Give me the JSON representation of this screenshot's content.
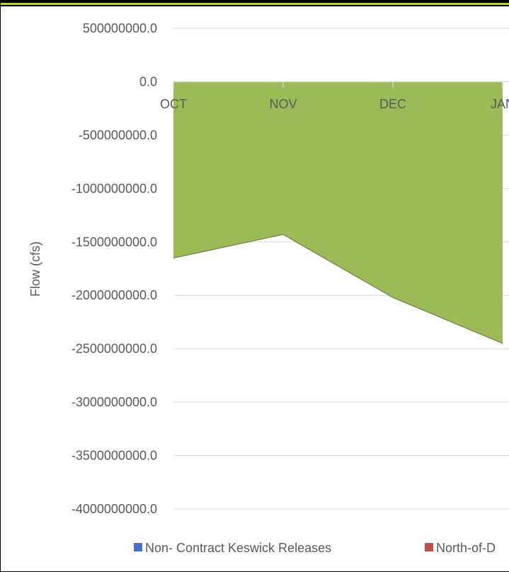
{
  "chart_data": {
    "type": "area",
    "title": "",
    "xlabel": "",
    "ylabel": "Flow (cfs)",
    "categories": [
      "OCT",
      "NOV",
      "DEC",
      "JAN"
    ],
    "ylim": [
      -4000000000,
      500000000
    ],
    "yticks": [
      500000000,
      0,
      -500000000,
      -1000000000,
      -1500000000,
      -2000000000,
      -2500000000,
      -3000000000,
      -3500000000,
      -4000000000
    ],
    "ytick_labels": [
      "500000000.0",
      "0.0",
      "-500000000.0",
      "-1000000000.0",
      "-1500000000.0",
      "-2000000000.0",
      "-2500000000.0",
      "-3000000000.0",
      "-3500000000.0",
      "-4000000000.0"
    ],
    "grid": true,
    "legend_position": "bottom",
    "series": [
      {
        "name": "Non- Contract Keswick Releases",
        "color": "#4472c4",
        "values": [
          0,
          0,
          0,
          0
        ]
      },
      {
        "name": "North-of-D",
        "color": "#c0504d",
        "values": [
          0,
          0,
          0,
          0
        ]
      },
      {
        "color": "#9bbb59",
        "values": [
          -1650000000,
          -1430000000,
          -2020000000,
          -2450000000
        ]
      }
    ],
    "colors": {
      "axis": "#d9d9d9",
      "gridline": "#d9d9d9",
      "text": "#595959"
    }
  }
}
